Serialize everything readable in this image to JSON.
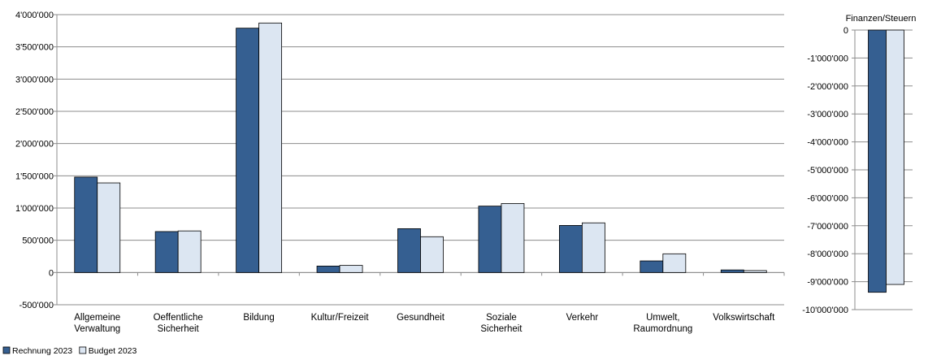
{
  "colors": {
    "rechnung": "#355F91",
    "budget": "#DCE6F2",
    "stroke": "#000000",
    "grid": "#8C8C8C"
  },
  "legend": [
    {
      "name": "Rechnung 2023",
      "key": "rechnung"
    },
    {
      "name": "Budget 2023",
      "key": "budget"
    }
  ],
  "chart_data": [
    {
      "type": "bar",
      "title": "",
      "categories": [
        [
          "Allgemeine",
          "Verwaltung"
        ],
        [
          "Oeffentliche",
          "Sicherheit"
        ],
        [
          "Bildung"
        ],
        [
          "Kultur/Freizeit"
        ],
        [
          "Gesundheit"
        ],
        [
          "Soziale",
          "Sicherheit"
        ],
        [
          "Verkehr"
        ],
        [
          "Umwelt,",
          "Raumordnung"
        ],
        [
          "Volkswirtschaft"
        ]
      ],
      "series": [
        {
          "name": "Rechnung 2023",
          "values": [
            1480000,
            635000,
            3790000,
            100000,
            680000,
            1030000,
            730000,
            180000,
            40000
          ]
        },
        {
          "name": "Budget 2023",
          "values": [
            1390000,
            645000,
            3870000,
            110000,
            555000,
            1070000,
            770000,
            290000,
            30000
          ]
        }
      ],
      "ylim": [
        -500000,
        4000000
      ],
      "yticks": [
        -500000,
        0,
        500000,
        1000000,
        1500000,
        2000000,
        2500000,
        3000000,
        3500000,
        4000000
      ],
      "ytick_labels": [
        "-500'000",
        "0",
        "500'000",
        "1'000'000",
        "1'500'000",
        "2'000'000",
        "2'500'000",
        "3'000'000",
        "3'500'000",
        "4'000'000"
      ],
      "grid": true,
      "legend_position": "bottom-left"
    },
    {
      "type": "bar",
      "title": "Finanzen/Steuern",
      "categories": [
        ""
      ],
      "series": [
        {
          "name": "Rechnung 2023",
          "values": [
            -9380000
          ]
        },
        {
          "name": "Budget 2023",
          "values": [
            -9100000
          ]
        }
      ],
      "ylim": [
        -10000000,
        0
      ],
      "yticks": [
        0,
        -1000000,
        -2000000,
        -3000000,
        -4000000,
        -5000000,
        -6000000,
        -7000000,
        -8000000,
        -9000000,
        -10000000
      ],
      "ytick_labels": [
        "0",
        "-1'000'000",
        "-2'000'000",
        "-3'000'000",
        "-4'000'000",
        "-5'000'000",
        "-6'000'000",
        "-7'000'000",
        "-8'000'000",
        "-9'000'000",
        "-10'000'000"
      ],
      "grid": true
    }
  ]
}
